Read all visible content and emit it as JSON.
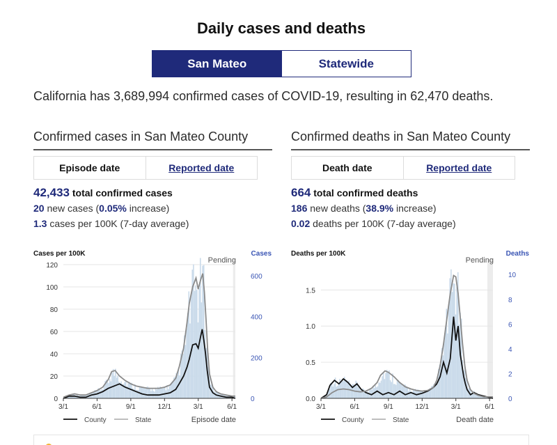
{
  "page": {
    "title": "Daily cases and deaths",
    "toggle": {
      "active": "San Mateo",
      "inactive": "Statewide"
    },
    "summary": "California has 3,689,994 confirmed cases of COVID-19, resulting in 62,470 deaths."
  },
  "cases_panel": {
    "title": "Confirmed cases in San Mateo County",
    "tab_active": "Episode date",
    "tab_link": "Reported date",
    "total_value": "42,433",
    "total_label": "total confirmed cases",
    "new_value": "20",
    "new_text_a": "new cases (",
    "new_pct": "0.05%",
    "new_text_b": "increase)",
    "per100k_value": "1.3",
    "per100k_label": "cases per 100K (7-day average)"
  },
  "deaths_panel": {
    "title": "Confirmed deaths in San Mateo County",
    "tab_active": "Death date",
    "tab_link": "Reported date",
    "total_value": "664",
    "total_label": "total confirmed deaths",
    "new_value": "186",
    "new_text_a": "new deaths (",
    "new_pct": "38.9%",
    "new_text_b": "increase)",
    "per100k_value": "0.02",
    "per100k_label": "deaths per 100K (7-day average)"
  },
  "colors": {
    "navy": "#1f2a7a",
    "bars": "#c9daea",
    "county": "#111111",
    "state": "#8a8a8a",
    "pending": "#ececec",
    "right_axis": "#3a55b4"
  },
  "chart_data": [
    {
      "type": "line",
      "title": "Confirmed cases in San Mateo County",
      "ylabel": "Cases per 100K",
      "y2label": "Cases",
      "xlabel": "Episode date",
      "pending_label": "Pending",
      "ylim": [
        0,
        120
      ],
      "yticks": [
        0,
        20,
        40,
        60,
        80,
        100,
        120
      ],
      "y2lim": [
        0,
        654
      ],
      "y2ticks": [
        0,
        200,
        400,
        600
      ],
      "xlim": [
        0,
        15.3
      ],
      "xticks": [
        0,
        3,
        6,
        9,
        12,
        15
      ],
      "xticklabels": [
        "3/1",
        "6/1",
        "9/1",
        "12/1",
        "3/1",
        "6/1"
      ],
      "pending_start": 15.1,
      "legend": [
        "County",
        "State"
      ],
      "series": [
        {
          "name": "County",
          "x": [
            0,
            0.5,
            1,
            1.5,
            2,
            2.5,
            3,
            3.5,
            4,
            4.5,
            5,
            5.5,
            6,
            6.5,
            7,
            7.5,
            8,
            8.5,
            9,
            9.5,
            10,
            10.3,
            10.7,
            11,
            11.2,
            11.5,
            11.8,
            12.0,
            12.2,
            12.35,
            12.5,
            12.65,
            12.8,
            13,
            13.3,
            13.6,
            14,
            14.5,
            15,
            15.3
          ],
          "y": [
            0,
            2,
            2,
            1,
            1,
            3,
            4,
            6,
            9,
            11,
            13,
            10,
            8,
            6,
            4,
            3,
            3,
            3,
            4,
            5,
            8,
            13,
            20,
            28,
            35,
            48,
            49,
            45,
            55,
            62,
            52,
            40,
            25,
            10,
            5,
            3,
            2,
            1,
            1,
            0
          ]
        },
        {
          "name": "State",
          "x": [
            0,
            0.5,
            1,
            1.5,
            2,
            2.5,
            3,
            3.5,
            4,
            4.3,
            4.6,
            5,
            5.5,
            6,
            6.5,
            7,
            7.5,
            8,
            8.5,
            9,
            9.5,
            10,
            10.3,
            10.7,
            11,
            11.2,
            11.5,
            11.8,
            12.0,
            12.2,
            12.4,
            12.55,
            12.7,
            12.85,
            13,
            13.3,
            13.6,
            14,
            14.5,
            15,
            15.3
          ],
          "y": [
            1,
            3,
            4,
            3,
            3,
            5,
            7,
            10,
            17,
            24,
            25,
            20,
            16,
            13,
            11,
            10,
            9,
            9,
            9,
            10,
            12,
            18,
            28,
            45,
            68,
            85,
            100,
            108,
            98,
            106,
            112,
            95,
            70,
            42,
            22,
            10,
            6,
            4,
            3,
            2,
            2
          ]
        }
      ]
    },
    {
      "type": "line",
      "title": "Confirmed deaths in San Mateo County",
      "ylabel": "Deaths per 100K",
      "y2label": "Deaths",
      "xlabel": "Death date",
      "pending_label": "Pending",
      "ylim": [
        0,
        1.85
      ],
      "yticks": [
        0.0,
        0.5,
        1.0,
        1.5
      ],
      "yticklabels": [
        "0.0",
        "0.5",
        "1.0",
        "1.5"
      ],
      "y2lim": [
        0,
        10.8
      ],
      "y2ticks": [
        0,
        2,
        4,
        6,
        8,
        10
      ],
      "xlim": [
        0,
        15.3
      ],
      "xticks": [
        0,
        3,
        6,
        9,
        12,
        15
      ],
      "xticklabels": [
        "3/1",
        "6/1",
        "9/1",
        "12/1",
        "3/1",
        "6/1"
      ],
      "pending_start": 14.8,
      "legend": [
        "County",
        "State"
      ],
      "series": [
        {
          "name": "County",
          "x": [
            0,
            0.5,
            0.8,
            1.2,
            1.6,
            2,
            2.4,
            2.8,
            3.2,
            3.6,
            4,
            4.5,
            5,
            5.5,
            6,
            6.5,
            7,
            7.5,
            8,
            8.5,
            9,
            9.5,
            10,
            10.3,
            10.6,
            10.9,
            11.2,
            11.5,
            11.8,
            12.0,
            12.2,
            12.4,
            12.55,
            12.7,
            12.85,
            13,
            13.3,
            13.6,
            14,
            14.5,
            15.3
          ],
          "y": [
            0,
            0.05,
            0.18,
            0.25,
            0.2,
            0.27,
            0.22,
            0.15,
            0.2,
            0.12,
            0.08,
            0.05,
            0.1,
            0.05,
            0.08,
            0.05,
            0.1,
            0.05,
            0.08,
            0.05,
            0.07,
            0.1,
            0.15,
            0.2,
            0.3,
            0.5,
            0.35,
            0.55,
            1.13,
            0.8,
            1.0,
            0.6,
            0.45,
            0.3,
            0.2,
            0.12,
            0.05,
            0.08,
            0.05,
            0.03,
            0
          ]
        },
        {
          "name": "State",
          "x": [
            0,
            0.5,
            1,
            1.5,
            2,
            2.5,
            3,
            3.5,
            4,
            4.5,
            5,
            5.3,
            5.7,
            6,
            6.5,
            7,
            7.5,
            8,
            8.5,
            9,
            9.5,
            10,
            10.3,
            10.6,
            10.9,
            11.2,
            11.5,
            11.8,
            12.0,
            12.2,
            12.4,
            12.6,
            12.8,
            13,
            13.3,
            13.6,
            14,
            14.5,
            15,
            15.3
          ],
          "y": [
            0,
            0.02,
            0.08,
            0.12,
            0.13,
            0.12,
            0.1,
            0.09,
            0.1,
            0.14,
            0.22,
            0.32,
            0.38,
            0.36,
            0.3,
            0.22,
            0.16,
            0.13,
            0.11,
            0.1,
            0.11,
            0.15,
            0.25,
            0.45,
            0.75,
            1.1,
            1.45,
            1.7,
            1.68,
            1.45,
            1.1,
            0.75,
            0.45,
            0.25,
            0.12,
            0.07,
            0.04,
            0.02,
            0.02,
            0.02
          ]
        }
      ]
    }
  ]
}
